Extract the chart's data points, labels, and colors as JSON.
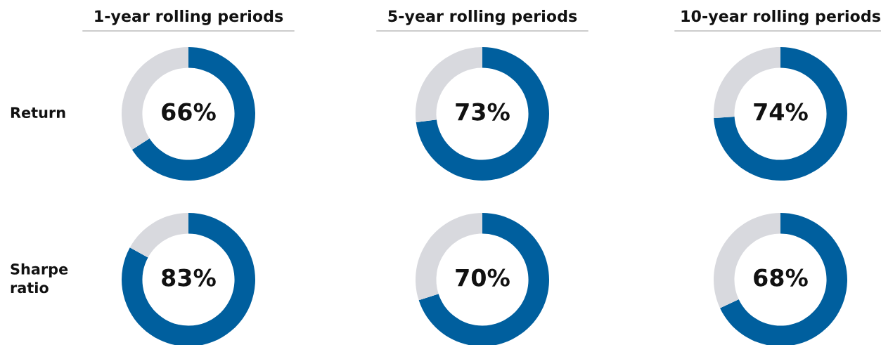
{
  "chart_data": [
    {
      "type": "donut",
      "title": "1-year rolling periods",
      "ylabel": "Return",
      "categories": [
        null,
        null
      ],
      "values": [
        66,
        34
      ],
      "colors": [
        "#005f9e",
        "#d8d9de"
      ],
      "value_labels": [
        "66%",
        null
      ]
    },
    {
      "type": "donut",
      "title": "5-year rolling periods",
      "categories": [
        null,
        null
      ],
      "values": [
        73,
        27
      ],
      "colors": [
        "#005f9e",
        "#d8d9de"
      ],
      "value_labels": [
        "73%",
        null
      ]
    },
    {
      "type": "donut",
      "title": "10-year rolling periods",
      "categories": [
        null,
        null
      ],
      "values": [
        74,
        26
      ],
      "colors": [
        "#005f9e",
        "#d8d9de"
      ],
      "value_labels": [
        "74%",
        null
      ]
    },
    {
      "type": "donut",
      "ylabel": "Sharpe ratio",
      "categories": [
        null,
        null
      ],
      "values": [
        83,
        17
      ],
      "colors": [
        "#005f9e",
        "#d8d9de"
      ],
      "value_labels": [
        "83%",
        null
      ]
    },
    {
      "type": "donut",
      "categories": [
        null,
        null
      ],
      "values": [
        70,
        30
      ],
      "colors": [
        "#005f9e",
        "#d8d9de"
      ],
      "value_labels": [
        "70%",
        null
      ]
    },
    {
      "type": "donut",
      "categories": [
        null,
        null
      ],
      "values": [
        68,
        32
      ],
      "colors": [
        "#005f9e",
        "#d8d9de"
      ],
      "value_labels": [
        "68%",
        null
      ]
    }
  ]
}
